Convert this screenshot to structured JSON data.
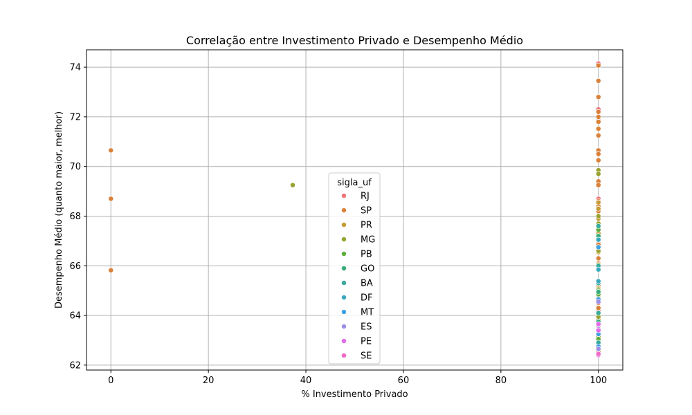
{
  "chart_data": {
    "type": "scatter",
    "title": "Correlação entre Investimento Privado e Desempenho Médio",
    "xlabel": "% Investimento Privado",
    "ylabel": "Desempenho Médio (quanto maior, melhor)",
    "xlim": [
      -5,
      105
    ],
    "ylim": [
      61.8,
      74.7
    ],
    "xticks": [
      0,
      20,
      40,
      60,
      80,
      100
    ],
    "yticks": [
      62,
      64,
      66,
      68,
      70,
      72,
      74
    ],
    "grid": true,
    "legend": {
      "title": "sigla_uf",
      "placement": "lower-center"
    },
    "series": [
      {
        "name": "RJ",
        "color": "#f0727a",
        "points": [
          [
            100,
            74.15
          ],
          [
            100,
            72.3
          ],
          [
            100,
            71.85
          ],
          [
            100,
            70.6
          ],
          [
            100,
            68.7
          ],
          [
            100,
            66.9
          ],
          [
            100,
            64.2
          ],
          [
            100,
            63.2
          ]
        ]
      },
      {
        "name": "SP",
        "color": "#da8139",
        "points": [
          [
            0,
            70.65
          ],
          [
            0,
            68.7
          ],
          [
            0,
            65.82
          ],
          [
            100,
            74.07
          ],
          [
            100,
            73.45
          ],
          [
            100,
            72.8
          ],
          [
            100,
            72.2
          ],
          [
            100,
            72.0
          ],
          [
            100,
            71.8
          ],
          [
            100,
            71.52
          ],
          [
            100,
            71.25
          ],
          [
            100,
            70.65
          ],
          [
            100,
            70.5
          ],
          [
            100,
            70.25
          ],
          [
            100,
            69.4
          ],
          [
            100,
            69.25
          ],
          [
            100,
            68.6
          ],
          [
            100,
            68.4
          ],
          [
            100,
            68.2
          ],
          [
            100,
            67.5
          ],
          [
            100,
            66.85
          ],
          [
            100,
            66.3
          ],
          [
            100,
            66.1
          ],
          [
            100,
            65.95
          ],
          [
            100,
            65.2
          ],
          [
            100,
            65.0
          ],
          [
            100,
            64.5
          ],
          [
            100,
            64.3
          ],
          [
            100,
            63.85
          ],
          [
            100,
            63.6
          ],
          [
            100,
            63.3
          ],
          [
            100,
            62.95
          ],
          [
            100,
            62.7
          ]
        ]
      },
      {
        "name": "PR",
        "color": "#c89a36",
        "points": [
          [
            100,
            68.55
          ],
          [
            100,
            68.3
          ],
          [
            100,
            67.9
          ],
          [
            100,
            67.3
          ],
          [
            100,
            66.55
          ],
          [
            100,
            66.05
          ],
          [
            100,
            65.1
          ],
          [
            100,
            64.8
          ],
          [
            100,
            64.0
          ],
          [
            100,
            63.5
          ],
          [
            100,
            62.85
          ],
          [
            100,
            62.55
          ]
        ]
      },
      {
        "name": "MG",
        "color": "#98a22f",
        "points": [
          [
            37.3,
            69.25
          ],
          [
            100,
            69.85
          ],
          [
            100,
            69.7
          ],
          [
            100,
            68.0
          ],
          [
            100,
            67.7
          ],
          [
            100,
            66.6
          ],
          [
            100,
            65.05
          ],
          [
            100,
            63.95
          ],
          [
            100,
            63.15
          ]
        ]
      },
      {
        "name": "PB",
        "color": "#5fae3a",
        "points": [
          [
            100,
            67.45
          ],
          [
            100,
            65.0
          ],
          [
            100,
            64.85
          ],
          [
            100,
            63.05
          ]
        ]
      },
      {
        "name": "GO",
        "color": "#35ad7a",
        "points": [
          [
            100,
            67.2
          ],
          [
            100,
            65.9
          ],
          [
            100,
            64.95
          ],
          [
            100,
            63.75
          ]
        ]
      },
      {
        "name": "BA",
        "color": "#36ab9c",
        "points": [
          [
            100,
            67.6
          ],
          [
            100,
            66.0
          ],
          [
            100,
            65.3
          ],
          [
            100,
            64.1
          ],
          [
            100,
            62.9
          ]
        ]
      },
      {
        "name": "DF",
        "color": "#38a9bd",
        "points": [
          [
            100,
            67.05
          ],
          [
            100,
            65.85
          ],
          [
            100,
            65.38
          ],
          [
            100,
            63.35
          ]
        ]
      },
      {
        "name": "MT",
        "color": "#3e9fe0",
        "points": [
          [
            100,
            66.75
          ],
          [
            100,
            64.65
          ],
          [
            100,
            63.25
          ],
          [
            100,
            62.75
          ]
        ]
      },
      {
        "name": "ES",
        "color": "#9d8de6",
        "points": [
          [
            100,
            64.55
          ],
          [
            100,
            63.45
          ],
          [
            100,
            62.65
          ]
        ]
      },
      {
        "name": "PE",
        "color": "#e36ae8",
        "points": [
          [
            100,
            63.65
          ],
          [
            100,
            63.4
          ],
          [
            100,
            62.4
          ]
        ]
      },
      {
        "name": "SE",
        "color": "#f068c4",
        "points": [
          [
            100,
            62.45
          ]
        ]
      }
    ]
  }
}
